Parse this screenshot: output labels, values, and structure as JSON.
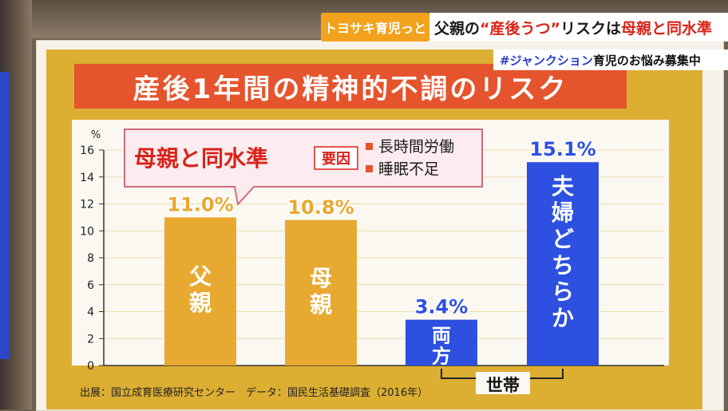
{
  "broadcast": {
    "program_logo": "トヨサキ育児っと",
    "headline_pre": "父親の",
    "headline_emph": "“産後うつ”",
    "headline_mid": "リスクは",
    "headline_red": "母親と同水準",
    "hashtag": "#ジャンクション",
    "hashtag_text": " 育児のお悩み募集中"
  },
  "chart_data": {
    "type": "bar",
    "title": "産後1年間の精神的不調のリスク",
    "ylabel": "%",
    "ylim": [
      0,
      16
    ],
    "yticks": [
      0,
      2,
      4,
      6,
      8,
      10,
      12,
      14,
      16
    ],
    "bars": [
      {
        "label": "父親",
        "value": 11.0,
        "value_label": "11.0%",
        "color": "#e8a931",
        "label_color": "#ffffff",
        "value_color": "#e8a931"
      },
      {
        "label": "母親",
        "value": 10.8,
        "value_label": "10.8%",
        "color": "#e8a931",
        "label_color": "#ffffff",
        "value_color": "#e8a931"
      },
      {
        "label": "両方",
        "value": 3.4,
        "value_label": "3.4%",
        "color": "#2d50e0",
        "label_color": "#ffffff",
        "value_color": "#2d50e0"
      },
      {
        "label": "夫婦どちらか",
        "value": 15.1,
        "value_label": "15.1%",
        "color": "#2d50e0",
        "label_color": "#ffffff",
        "value_color": "#2d50e0"
      }
    ],
    "group_label": "世帯",
    "callout": {
      "title": "母親と同水準",
      "factor_label": "要因",
      "factors": [
        "長時間労働",
        "睡眠不足"
      ]
    },
    "source": "出展：国立成育医療研究センター　データ：国民生活基礎調査（2016年）",
    "colors": {
      "panel": "#dcae32",
      "title_bg": "#e5542d",
      "plot_bg": "#fbf8f2",
      "grid": "#f0dca8",
      "callout_bg": "#fdecef",
      "callout_border": "#cf6a7e",
      "callout_red": "#d8231a"
    }
  }
}
